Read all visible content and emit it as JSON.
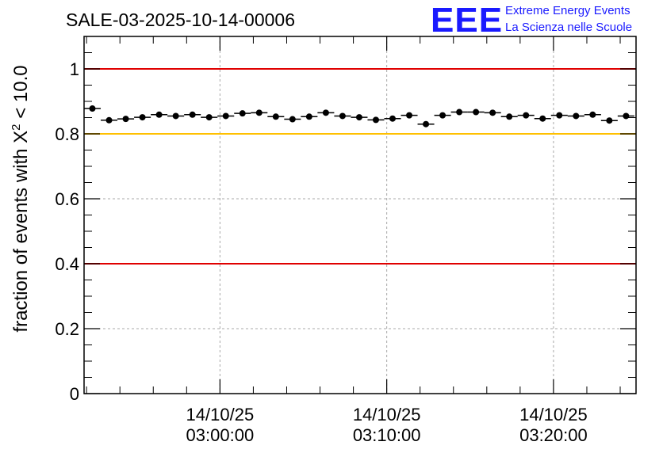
{
  "logo": {
    "mark": "EEE",
    "line1": "Extreme Energy Events",
    "line2": "La Scienza nelle Scuole"
  },
  "chart_data": {
    "type": "scatter",
    "title": "SALE-03-2025-10-14-00006",
    "ylabel_prefix": "fraction of events with ",
    "ylabel_symbol": "X",
    "ylabel_sup": "2",
    "ylabel_suffix": " < 10.0",
    "xlabel": "",
    "xlim_minutes": [
      -8.15,
      24.95
    ],
    "ylim": [
      0,
      1.1
    ],
    "grid": true,
    "y_ticks": [
      0,
      0.2,
      0.4,
      0.6,
      0.8,
      1
    ],
    "y_tick_labels": [
      "0",
      "0.2",
      "0.4",
      "0.6",
      "0.8",
      "1"
    ],
    "x_ticks_minutes": [
      0,
      10,
      20
    ],
    "x_tick_labels": [
      {
        "date": "14/10/25",
        "time": "03:00:00"
      },
      {
        "date": "14/10/25",
        "time": "03:10:00"
      },
      {
        "date": "14/10/25",
        "time": "03:20:00"
      }
    ],
    "reference_lines": [
      {
        "y": 1.0,
        "color": "#e00000",
        "name": "upper-red-line"
      },
      {
        "y": 0.8,
        "color": "#ffc000",
        "name": "yellow-line"
      },
      {
        "y": 0.4,
        "color": "#e00000",
        "name": "lower-red-line"
      }
    ],
    "bin_width_minutes": 1.0,
    "series": [
      {
        "name": "fraction",
        "x_minutes": [
          -7.65,
          -6.65,
          -5.65,
          -4.65,
          -3.65,
          -2.65,
          -1.65,
          -0.65,
          0.35,
          1.35,
          2.35,
          3.35,
          4.35,
          5.35,
          6.35,
          7.35,
          8.35,
          9.35,
          10.35,
          11.35,
          12.35,
          13.35,
          14.35,
          15.35,
          16.35,
          17.35,
          18.35,
          19.35,
          20.35,
          21.35,
          22.35,
          23.35,
          24.35
        ],
        "y": [
          0.878,
          0.842,
          0.846,
          0.851,
          0.859,
          0.855,
          0.859,
          0.851,
          0.855,
          0.863,
          0.865,
          0.853,
          0.845,
          0.853,
          0.865,
          0.855,
          0.851,
          0.843,
          0.847,
          0.857,
          0.83,
          0.857,
          0.867,
          0.867,
          0.865,
          0.853,
          0.857,
          0.847,
          0.857,
          0.855,
          0.859,
          0.841,
          0.855
        ]
      }
    ]
  }
}
